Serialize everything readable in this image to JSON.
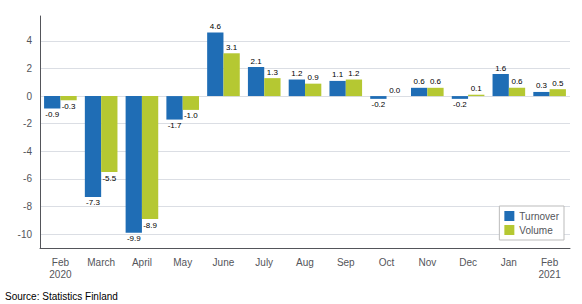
{
  "chart_data": {
    "type": "bar",
    "categories": [
      "Feb\n2020",
      "March",
      "April",
      "May",
      "June",
      "July",
      "Aug",
      "Sep",
      "Oct",
      "Nov",
      "Dec",
      "Jan",
      "Feb\n2021"
    ],
    "series": [
      {
        "name": "Turnover",
        "color": "#1f6db5",
        "values": [
          -0.9,
          -7.3,
          -9.9,
          -1.7,
          4.6,
          2.1,
          1.2,
          1.1,
          -0.2,
          0.6,
          -0.2,
          1.6,
          0.3
        ]
      },
      {
        "name": "Volume",
        "color": "#b5c832",
        "values": [
          -0.3,
          -5.5,
          -8.9,
          -1.0,
          3.1,
          1.3,
          0.9,
          1.2,
          0.0,
          0.6,
          0.1,
          0.6,
          0.5
        ],
        "value_labels": [
          "-0.3",
          "-5.5",
          "-8.9",
          "-1.0",
          "3.1",
          "1.3",
          "0.9",
          "1.2",
          "0.0",
          "0.6",
          "0.1",
          "0.6",
          "0.5"
        ]
      }
    ],
    "ylim": [
      -11,
      5.8
    ],
    "yticks": [
      -10,
      -8,
      -6,
      -4,
      -2,
      0,
      2,
      4
    ],
    "grid": true,
    "legend": "lower right",
    "data_labels": true,
    "source": "Source: Statistics Finland"
  }
}
